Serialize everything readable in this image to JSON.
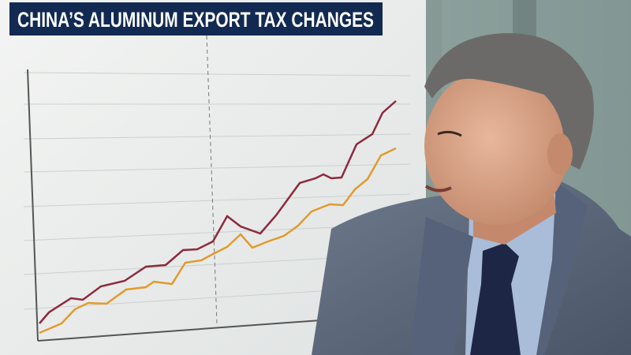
{
  "headline": {
    "title": "CHINA’S ALUMINUM EXPORT TAX CHANGES"
  }
}
